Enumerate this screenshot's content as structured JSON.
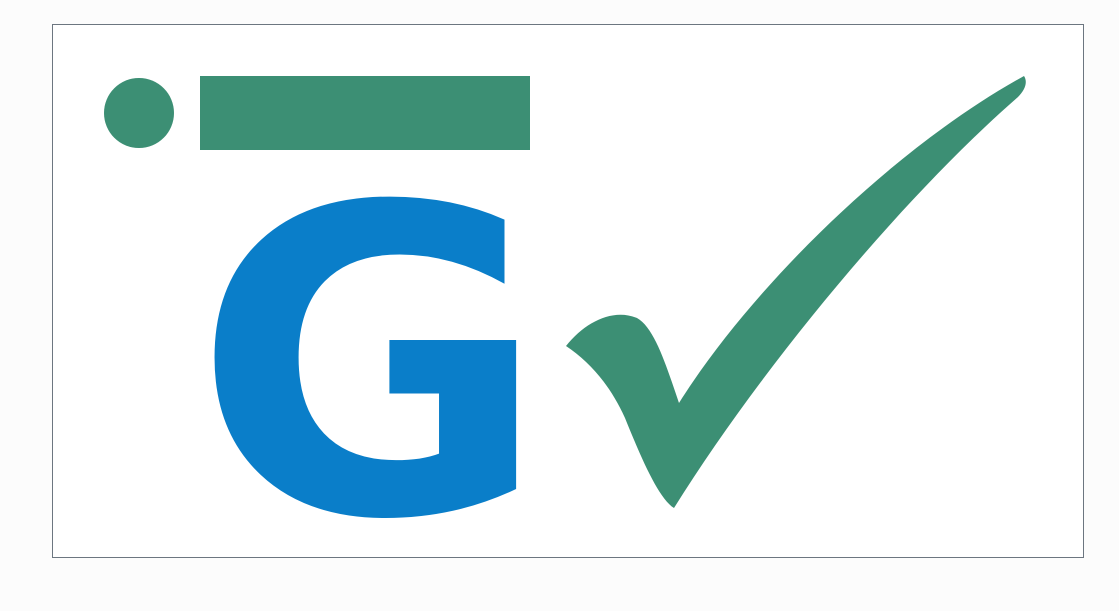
{
  "logo": {
    "letter": "G",
    "mark": "checkmark-icon",
    "colors": {
      "letter": "#0a7ec9",
      "accent": "#3c8f74",
      "frame": "#6c7680",
      "background": "#ffffff"
    }
  }
}
